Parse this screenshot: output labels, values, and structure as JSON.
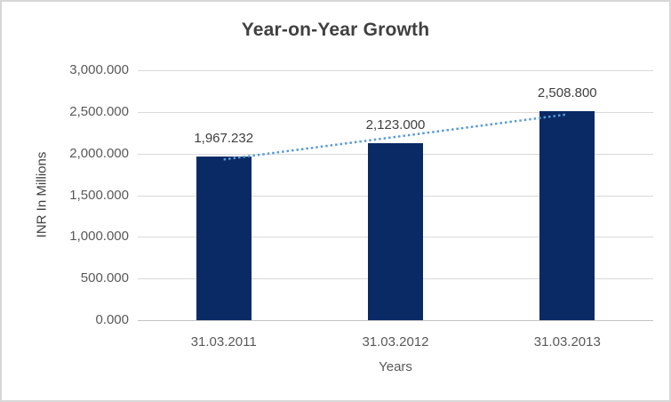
{
  "chart_data": {
    "type": "bar",
    "title": "Year-on-Year Growth",
    "categories": [
      "31.03.2011",
      "31.03.2012",
      "31.03.2013"
    ],
    "values": [
      1967.232,
      2123.0,
      2508.8
    ],
    "data_labels": [
      "1,967.232",
      "2,123.000",
      "2,508.800"
    ],
    "xlabel": "Years",
    "ylabel": "INR In Millions",
    "ylim": [
      0,
      3000
    ],
    "ytick_step": 500,
    "ytick_labels": [
      "0.000",
      "500.000",
      "1,000.000",
      "1,500.000",
      "2,000.000",
      "2,500.000",
      "3,000.000"
    ],
    "grid": true,
    "legend": "none",
    "trendline": {
      "type": "linear",
      "style": "dotted"
    },
    "colors": {
      "bar": "#0A2A66",
      "trendline": "#5B9BD5",
      "gridline": "#D9D9D9",
      "axis_line": "#C3C3C3",
      "title_text": "#404040",
      "label_text": "#404040",
      "tick_text": "#595959",
      "background": "#FFFFFF",
      "border": "#D7D7D7"
    }
  }
}
